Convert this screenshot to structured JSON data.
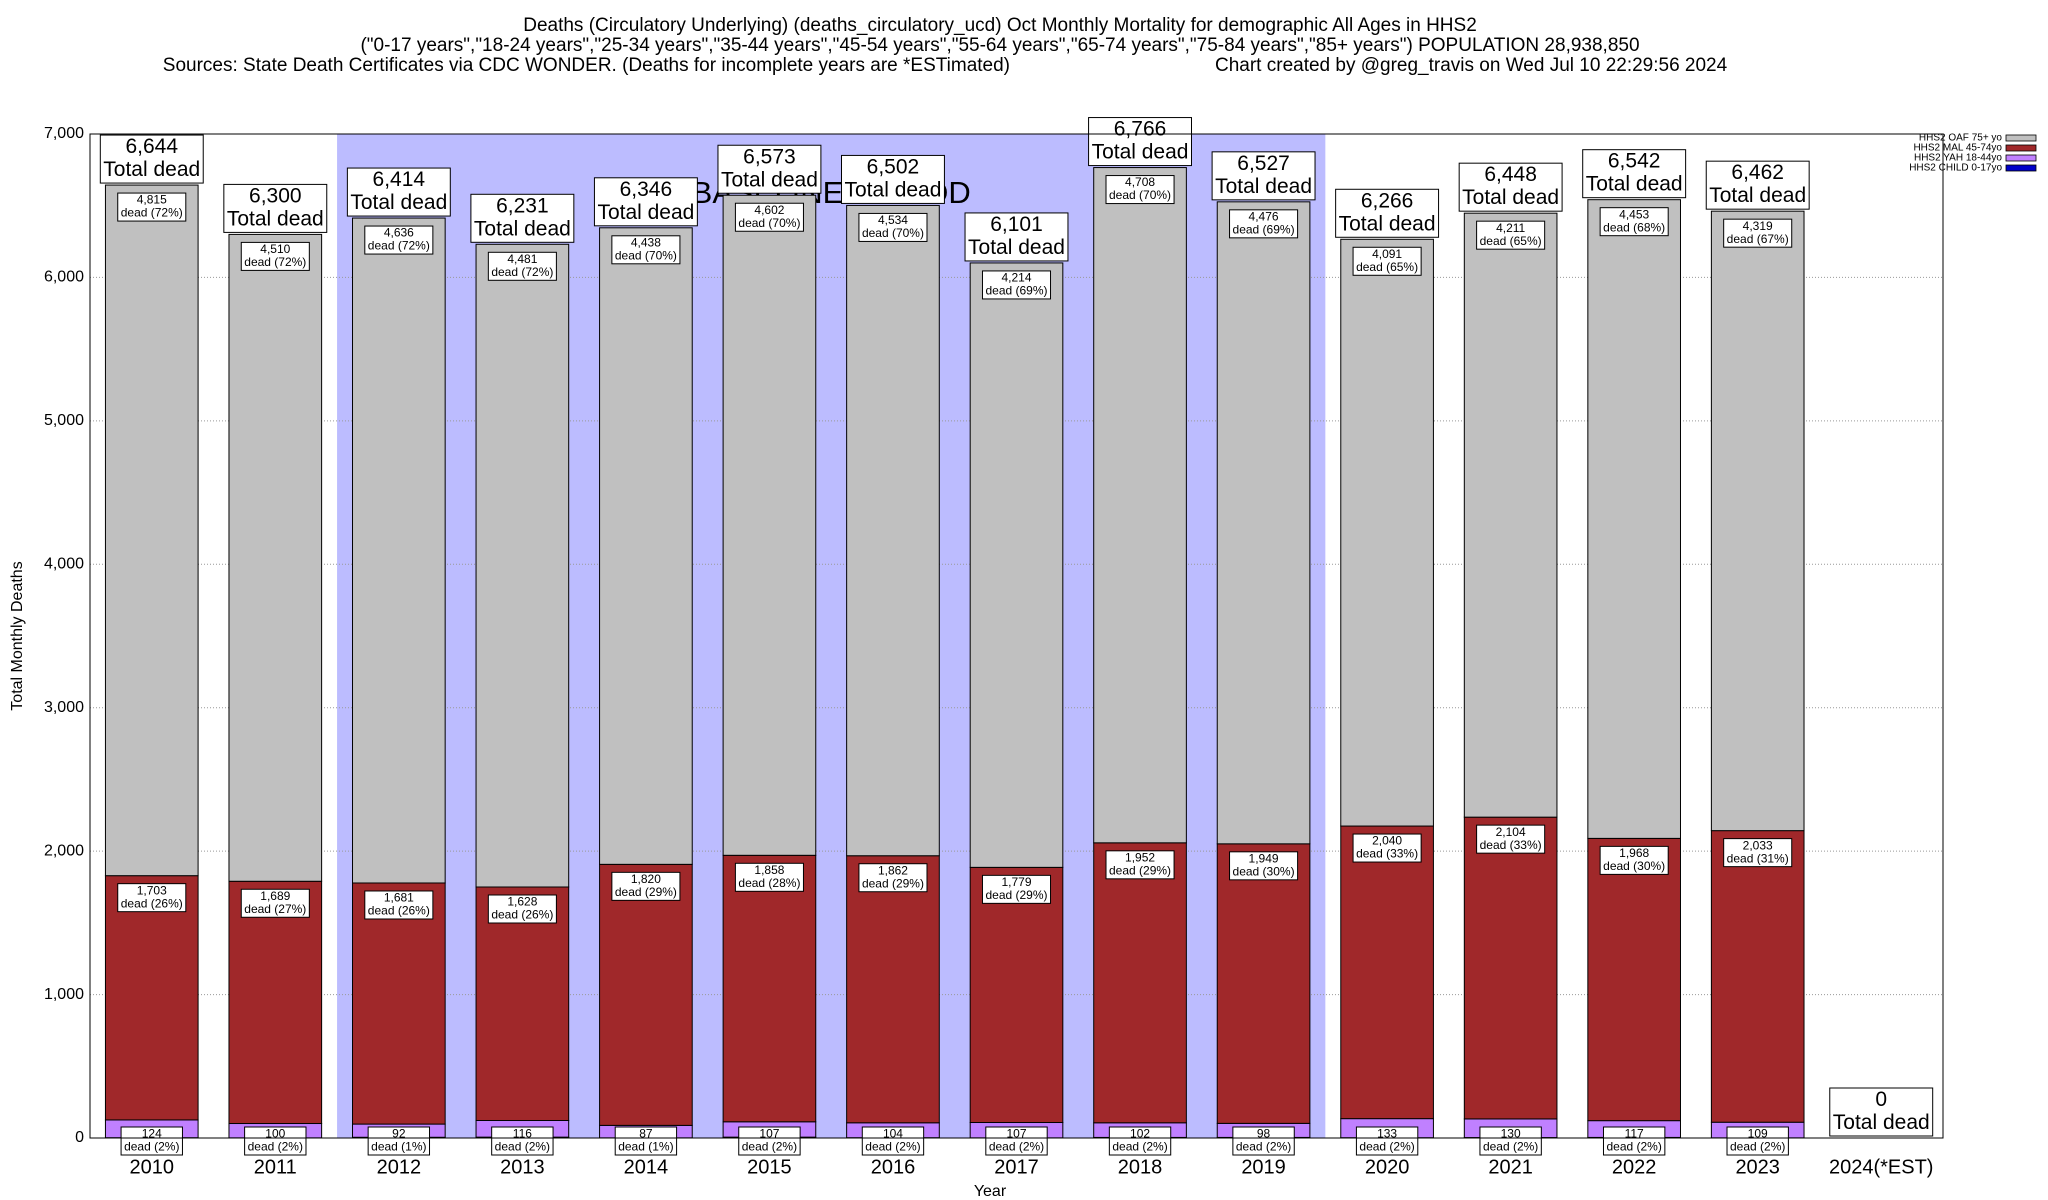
{
  "chart_data": {
    "type": "stacked_bar",
    "title": "Deaths (Circulatory Underlying) (deaths_circulatory_ucd) Oct Monthly Mortality for demographic All Ages in HHS2",
    "subtitle": "(\"0-17 years\",\"18-24 years\",\"25-34 years\",\"35-44 years\",\"45-54 years\",\"55-64 years\",\"65-74 years\",\"75-84 years\",\"85+ years\") POPULATION 28,938,850",
    "sources": "Sources: State Death Certificates via CDC WONDER. (Deaths for incomplete years are *ESTimated)",
    "credit": "Chart created by @greg_travis on Wed Jul 10 22:29:56 2024",
    "x_label": "Year",
    "y_label": "Total Monthly Deaths",
    "categories": [
      "2010",
      "2011",
      "2012",
      "2013",
      "2014",
      "2015",
      "2016",
      "2017",
      "2018",
      "2019",
      "2020",
      "2021",
      "2022",
      "2023",
      "2024(*EST)"
    ],
    "series": [
      {
        "name": "HHS2 CHILD 0-17yo",
        "color": "#0000c8",
        "values": [
          2,
          1,
          5,
          6,
          1,
          6,
          2,
          1,
          4,
          4,
          2,
          3,
          4,
          1,
          null
        ]
      },
      {
        "name": "HHS2 YAH 18-44yo",
        "color": "#c080ff",
        "values": [
          124,
          100,
          92,
          116,
          87,
          107,
          104,
          107,
          102,
          98,
          133,
          130,
          117,
          109,
          null
        ],
        "share_labels": [
          "dead (2%)",
          "dead (2%)",
          "dead (1%)",
          "dead (2%)",
          "dead (1%)",
          "dead (2%)",
          "dead (2%)",
          "dead (2%)",
          "dead (2%)",
          "dead (2%)",
          "dead (2%)",
          "dead (2%)",
          "dead (2%)",
          "dead (2%)",
          null
        ]
      },
      {
        "name": "HHS2 MAL 45-74yo",
        "color": "#a0282a",
        "values": [
          1703,
          1689,
          1681,
          1628,
          1820,
          1858,
          1862,
          1779,
          1952,
          1949,
          2040,
          2104,
          1968,
          2033,
          null
        ],
        "value_labels": [
          "1,703",
          "1,689",
          "1,681",
          "1,628",
          "1,820",
          "1,858",
          "1,862",
          "1,779",
          "1,952",
          "1,949",
          "2,040",
          "2,104",
          "1,968",
          "2,033",
          null
        ],
        "share_labels": [
          "dead (26%)",
          "dead (27%)",
          "dead (26%)",
          "dead (26%)",
          "dead (29%)",
          "dead (28%)",
          "dead (29%)",
          "dead (29%)",
          "dead (29%)",
          "dead (30%)",
          "dead (33%)",
          "dead (33%)",
          "dead (30%)",
          "dead (31%)",
          null
        ]
      },
      {
        "name": "HHS2 OAF 75+ yo",
        "color": "#c0c0c0",
        "values": [
          4815,
          4510,
          4636,
          4481,
          4438,
          4602,
          4534,
          4214,
          4708,
          4476,
          4091,
          4211,
          4453,
          4319,
          null
        ],
        "value_labels": [
          "4,815",
          "4,510",
          "4,636",
          "4,481",
          "4,438",
          "4,602",
          "4,534",
          "4,214",
          "4,708",
          "4,476",
          "4,091",
          "4,211",
          "4,453",
          "4,319",
          null
        ],
        "share_labels": [
          "dead (72%)",
          "dead (72%)",
          "dead (72%)",
          "dead (72%)",
          "dead (70%)",
          "dead (70%)",
          "dead (70%)",
          "dead (69%)",
          "dead (70%)",
          "dead (69%)",
          "dead (65%)",
          "dead (65%)",
          "dead (68%)",
          "dead (67%)",
          null
        ]
      }
    ],
    "totals": [
      6644,
      6300,
      6414,
      6231,
      6346,
      6573,
      6502,
      6101,
      6766,
      6527,
      6266,
      6448,
      6542,
      6462,
      0
    ],
    "total_labels": [
      "6,644",
      "6,300",
      "6,414",
      "6,231",
      "6,346",
      "6,573",
      "6,502",
      "6,101",
      "6,766",
      "6,527",
      "6,266",
      "6,448",
      "6,542",
      "6,462",
      "0"
    ],
    "total_text": "Total dead",
    "baseline": {
      "label": "BASELINE PERIOD",
      "start": "2012",
      "end": "2019",
      "color": "#bcbcff"
    },
    "ylim": [
      0,
      7000
    ],
    "yticks": [
      0,
      {
        "value": 1000,
        "label": "1,000"
      },
      {
        "value": 2000,
        "label": "2,000"
      },
      {
        "value": 3000,
        "label": "3,000"
      },
      {
        "value": 4000,
        "label": "4,000"
      },
      {
        "value": 5000,
        "label": "5,000"
      },
      {
        "value": 6000,
        "label": "6,000"
      },
      {
        "value": 7000,
        "label": "7,000"
      }
    ],
    "grid": true,
    "legend": "top-right"
  }
}
